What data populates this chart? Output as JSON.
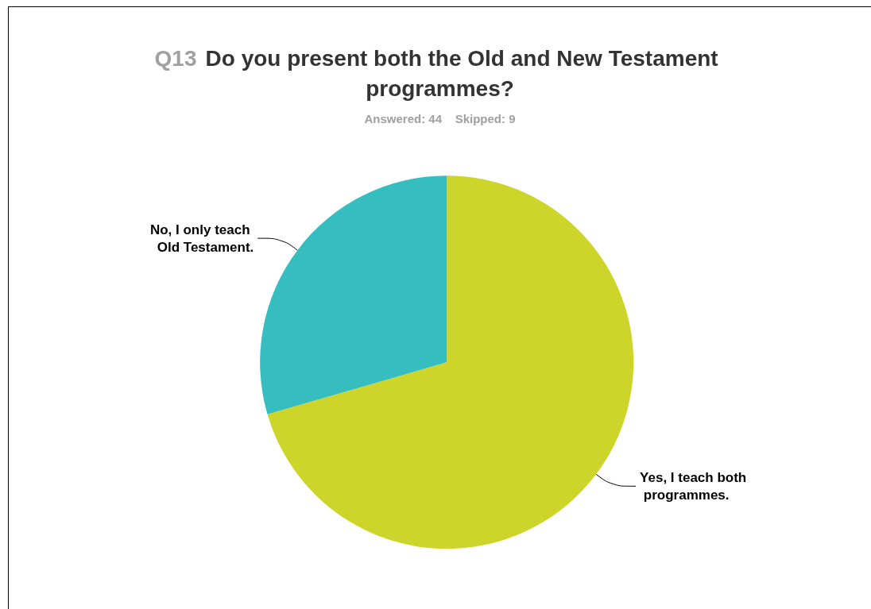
{
  "chart_data": {
    "type": "pie",
    "title": "Q13 Do you present both the Old and New Testament programmes?",
    "subtitle": "Answered: 44    Skipped: 9",
    "categories": [
      "Yes, I teach both programmes.",
      "No, I only teach Old Testament."
    ],
    "values": [
      70.5,
      29.5
    ],
    "colors": [
      "#cdd52a",
      "#35bdbf"
    ],
    "legend": false
  }
}
